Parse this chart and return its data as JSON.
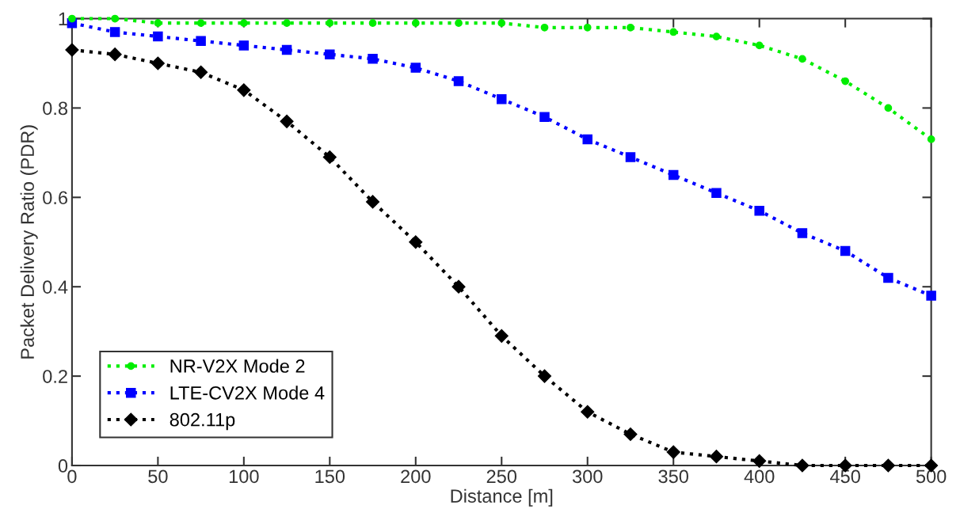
{
  "chart_data": {
    "type": "line",
    "xlabel": "Distance [m]",
    "ylabel": "Packet Delivery Ratio (PDR)",
    "x": [
      0,
      25,
      50,
      75,
      100,
      125,
      150,
      175,
      200,
      225,
      250,
      275,
      300,
      325,
      350,
      375,
      400,
      425,
      450,
      475,
      500
    ],
    "series": [
      {
        "name": "NR-V2X Mode 2",
        "color": "#00ee00",
        "marker": "circle",
        "values": [
          1.0,
          1.0,
          0.99,
          0.99,
          0.99,
          0.99,
          0.99,
          0.99,
          0.99,
          0.99,
          0.99,
          0.98,
          0.98,
          0.98,
          0.97,
          0.96,
          0.94,
          0.91,
          0.86,
          0.8,
          0.73
        ]
      },
      {
        "name": "LTE-CV2X Mode 4",
        "color": "#0000ff",
        "marker": "square",
        "values": [
          0.99,
          0.97,
          0.96,
          0.95,
          0.94,
          0.93,
          0.92,
          0.91,
          0.89,
          0.86,
          0.82,
          0.78,
          0.73,
          0.69,
          0.65,
          0.61,
          0.57,
          0.52,
          0.48,
          0.42,
          0.38
        ]
      },
      {
        "name": "802.11p",
        "color": "#000000",
        "marker": "diamond",
        "values": [
          0.93,
          0.92,
          0.9,
          0.88,
          0.84,
          0.77,
          0.69,
          0.59,
          0.5,
          0.4,
          0.29,
          0.2,
          0.12,
          0.07,
          0.03,
          0.02,
          0.01,
          0.0,
          0.0,
          0.0,
          0.0
        ]
      }
    ],
    "line_style": "dotted",
    "xlim": [
      0,
      500
    ],
    "xticks": [
      0,
      50,
      100,
      150,
      200,
      250,
      300,
      350,
      400,
      450,
      500
    ],
    "ylim": [
      0,
      1
    ],
    "yticks": [
      0,
      0.2,
      0.4,
      0.6,
      0.8,
      1
    ],
    "grid": false,
    "legend": "bottom left"
  }
}
